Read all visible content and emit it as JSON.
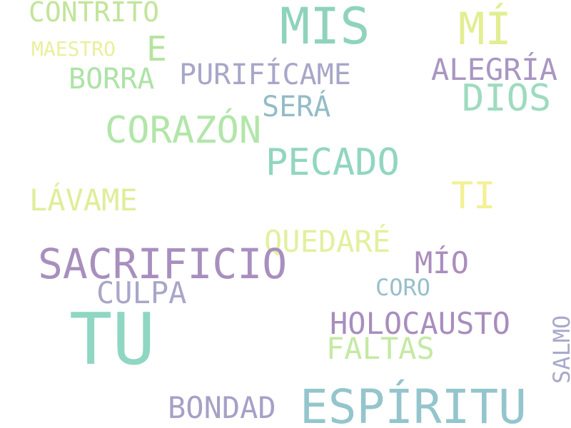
{
  "words": [
    {
      "text": "CONTRITO",
      "color": "#c2e59a"
    },
    {
      "text": "MIS",
      "color": "#8fd3bd"
    },
    {
      "text": "MÍ",
      "color": "#e2ee92"
    },
    {
      "text": "MAESTRO",
      "color": "#e8f09c"
    },
    {
      "text": "E",
      "color": "#b7e3a0"
    },
    {
      "text": "BORRA",
      "color": "#aee3a7"
    },
    {
      "text": "PURIFÍCAME",
      "color": "#a8a6c8"
    },
    {
      "text": "ALEGRÍA",
      "color": "#a996c2"
    },
    {
      "text": "DIOS",
      "color": "#9edbbf"
    },
    {
      "text": "SERÁ",
      "color": "#93bcc6"
    },
    {
      "text": "CORAZÓN",
      "color": "#b2e6a9"
    },
    {
      "text": "PECADO",
      "color": "#91d6c0"
    },
    {
      "text": "LÁVAME",
      "color": "#dfee99"
    },
    {
      "text": "TI",
      "color": "#f3f096"
    },
    {
      "text": "QUEDARÉ",
      "color": "#e3f09e"
    },
    {
      "text": "SACRIFICIO",
      "color": "#a88fbd"
    },
    {
      "text": "MÍO",
      "color": "#ab8dbd"
    },
    {
      "text": "CULPA",
      "color": "#a9a6c9"
    },
    {
      "text": "CORO",
      "color": "#98bfcc"
    },
    {
      "text": "TU",
      "color": "#8fd6c3"
    },
    {
      "text": "HOLOCAUSTO",
      "color": "#a98dbe"
    },
    {
      "text": "FALTAS",
      "color": "#c5e9a3"
    },
    {
      "text": "SALMO",
      "color": "#a8a9ca"
    },
    {
      "text": "BONDAD",
      "color": "#a7a0c6"
    },
    {
      "text": "ESPÍRITU",
      "color": "#94c5cc"
    }
  ]
}
